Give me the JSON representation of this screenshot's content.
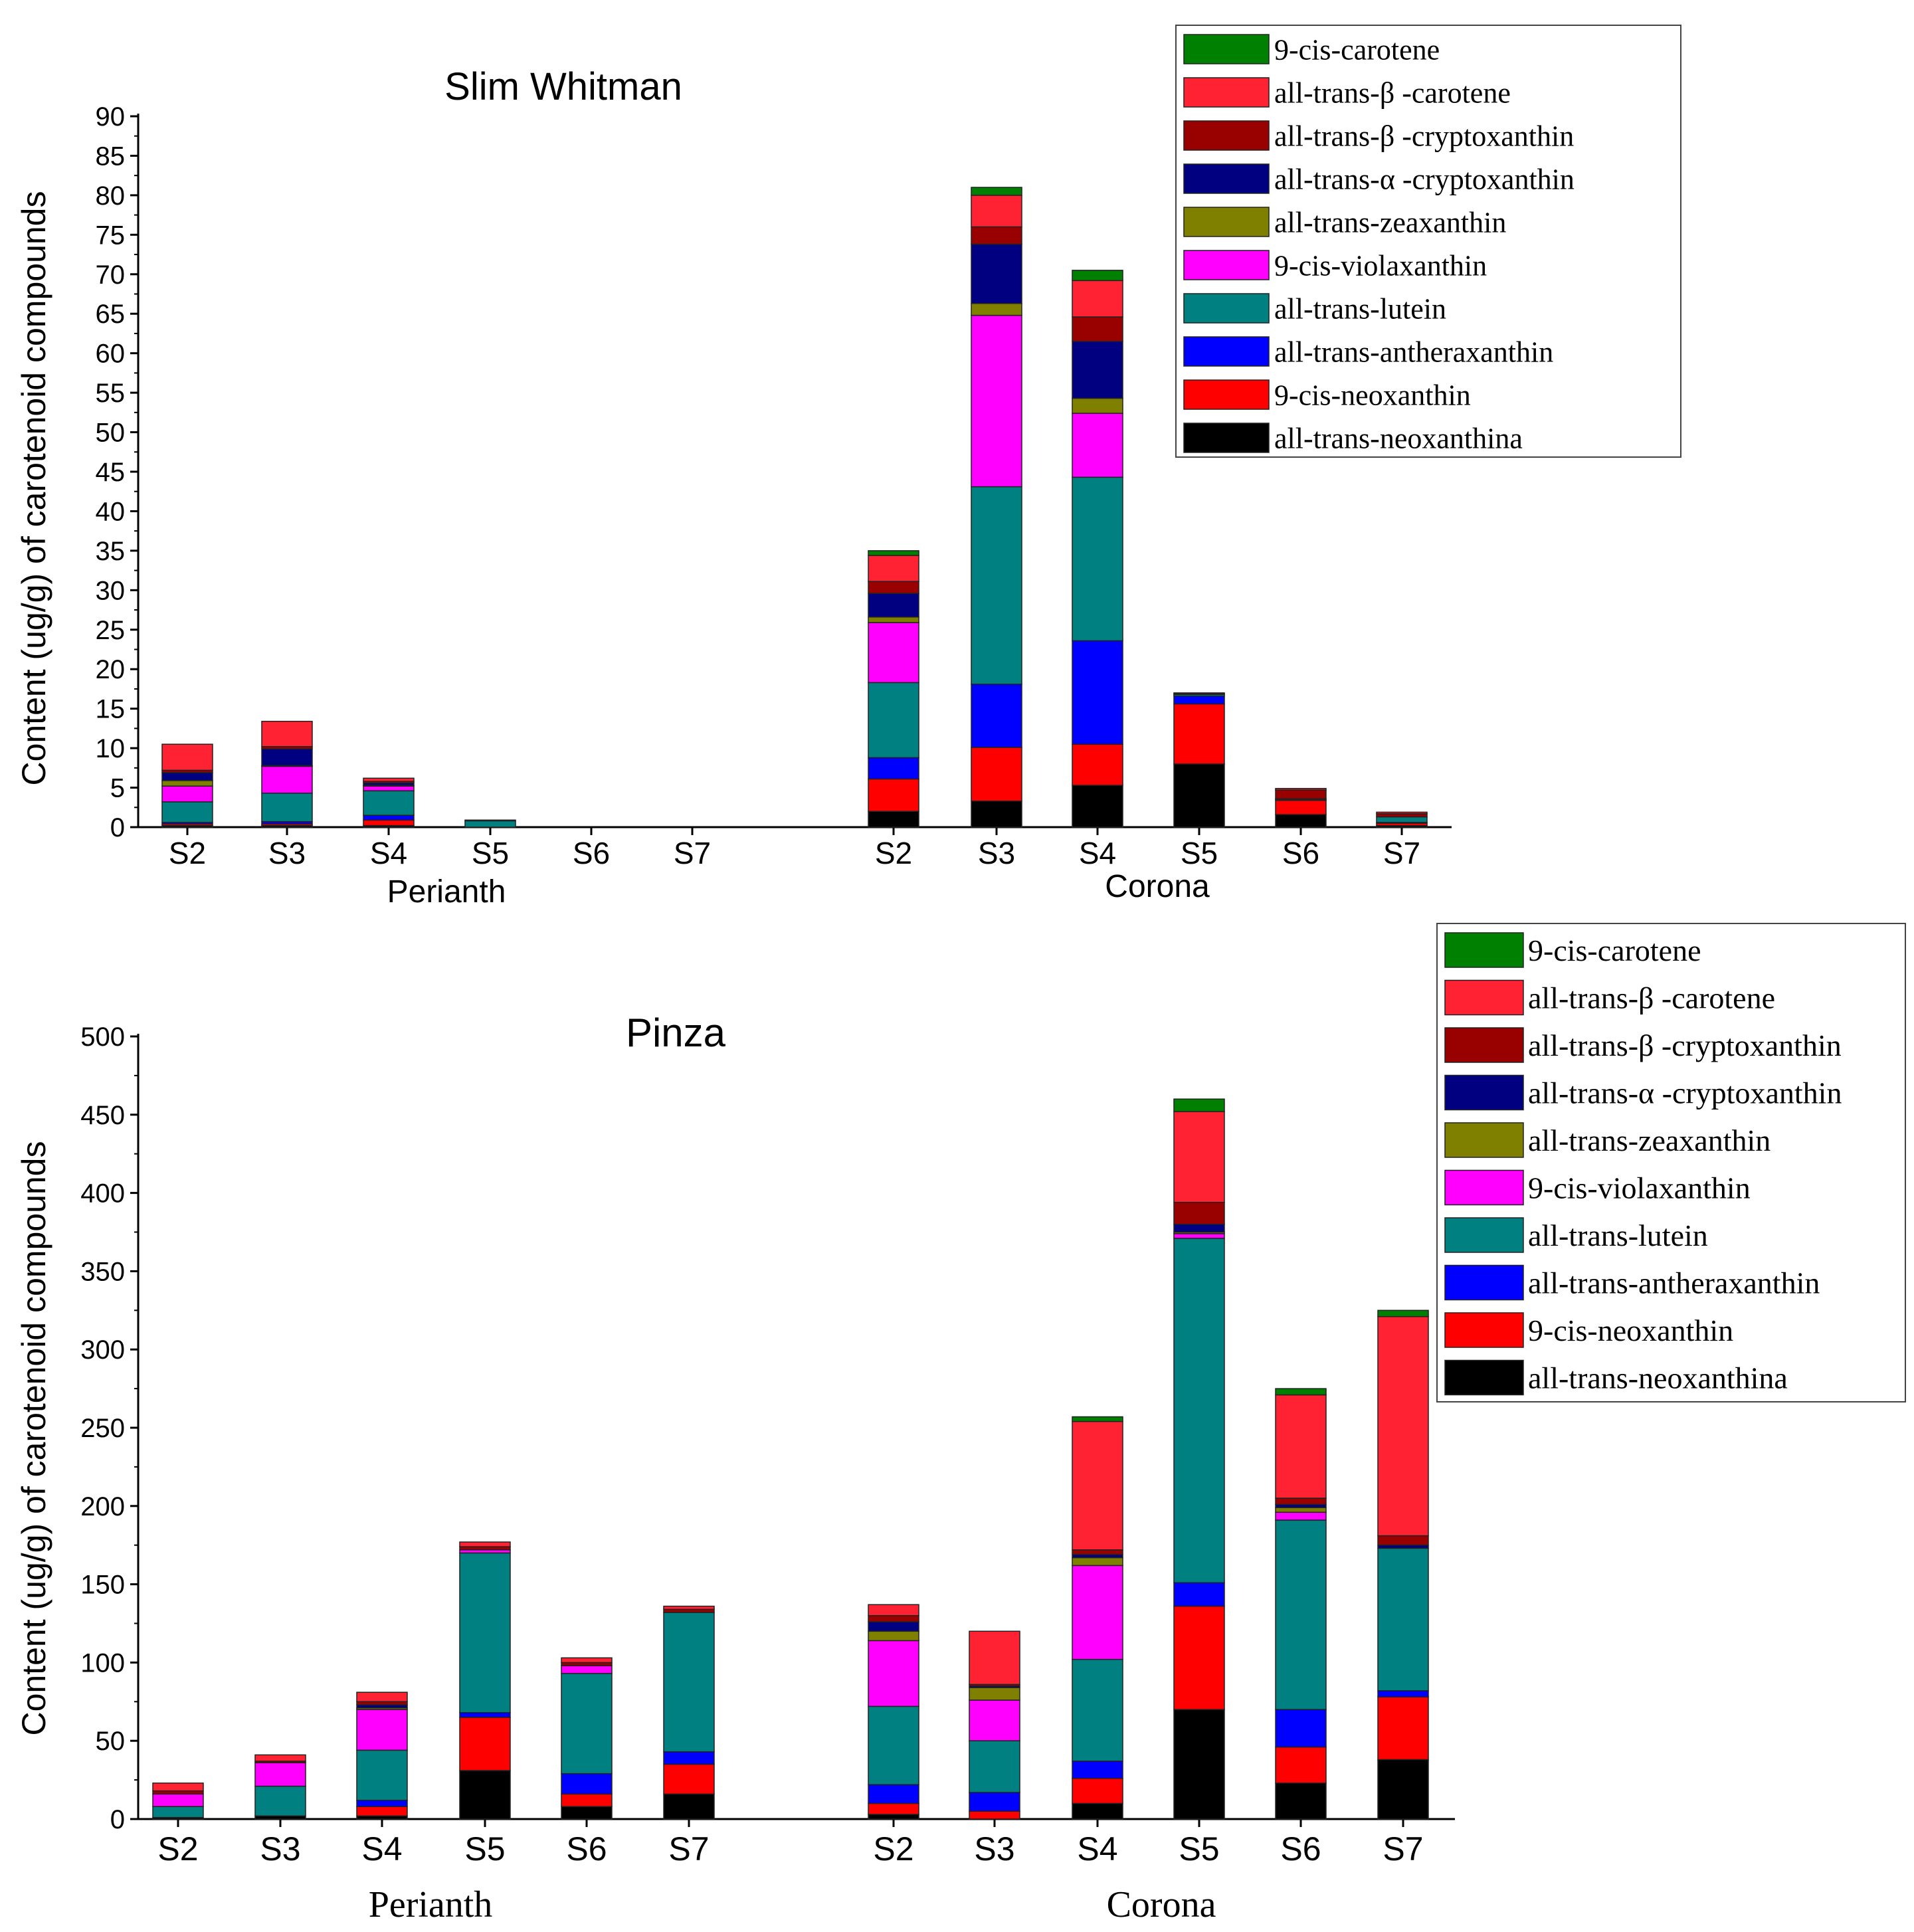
{
  "chart_data": [
    {
      "type": "bar",
      "stacked": true,
      "title": "Slim Whitman",
      "ylabel": "Content (ug/g) of carotenoid compounds",
      "ylim": [
        0,
        90
      ],
      "ytick_step": 5,
      "groups": [
        {
          "label": "Perianth",
          "categories": [
            "S2",
            "S3",
            "S4",
            "S5",
            "S6",
            "S7"
          ]
        },
        {
          "label": "Corona",
          "categories": [
            "S2",
            "S3",
            "S4",
            "S5",
            "S6",
            "S7"
          ]
        }
      ],
      "legend_position": "top-right",
      "series": [
        {
          "name": "all-trans-neoxanthina",
          "color": "#000000",
          "values": [
            0.2,
            0.2,
            0.2,
            0,
            0,
            0,
            2.0,
            3.3,
            5.3,
            8.0,
            1.6,
            0.2
          ]
        },
        {
          "name": "9-cis-neoxanthin",
          "color": "#ff0000",
          "values": [
            0.2,
            0.2,
            0.7,
            0,
            0,
            0,
            4.1,
            6.8,
            5.2,
            7.6,
            1.8,
            0.3
          ]
        },
        {
          "name": "all-trans-antheraxanthin",
          "color": "#0000ff",
          "values": [
            0.2,
            0.3,
            0.6,
            0,
            0,
            0,
            2.7,
            8.0,
            13.1,
            1.0,
            0.1,
            0.1
          ]
        },
        {
          "name": "all-trans-lutein",
          "color": "#008080",
          "values": [
            2.6,
            3.6,
            3.1,
            0.8,
            0,
            0,
            9.5,
            25.0,
            20.7,
            0.2,
            0.1,
            0.7
          ]
        },
        {
          "name": "9-cis-violaxanthin",
          "color": "#ff00ff",
          "values": [
            2.0,
            3.4,
            0.6,
            0,
            0,
            0,
            7.6,
            21.7,
            8.1,
            0,
            0,
            0
          ]
        },
        {
          "name": "all-trans-zeaxanthin",
          "color": "#808000",
          "values": [
            0.7,
            0.1,
            0.1,
            0,
            0,
            0,
            0.7,
            1.5,
            1.9,
            0,
            0,
            0
          ]
        },
        {
          "name": "all-trans-α -cryptoxanthin",
          "color": "#000080",
          "values": [
            1.0,
            2.1,
            0.3,
            0,
            0,
            0,
            3.0,
            7.5,
            7.2,
            0.1,
            0,
            0
          ]
        },
        {
          "name": "all-trans-β -cryptoxanthin",
          "color": "#990000",
          "values": [
            0.3,
            0.3,
            0.2,
            0,
            0,
            0,
            1.5,
            2.2,
            3.1,
            0,
            1.1,
            0.4
          ]
        },
        {
          "name": "all-trans-β -carotene",
          "color": "#ff2233",
          "values": [
            3.3,
            3.2,
            0.4,
            0.1,
            0,
            0,
            3.3,
            4.0,
            4.6,
            0.1,
            0.2,
            0.2
          ]
        },
        {
          "name": "9-cis-carotene",
          "color": "#008000",
          "values": [
            0,
            0,
            0,
            0,
            0,
            0,
            0.6,
            1.0,
            1.3,
            0,
            0,
            0
          ]
        }
      ]
    },
    {
      "type": "bar",
      "stacked": true,
      "title": "Pinza",
      "ylabel": "Content (ug/g) of carotenoid compounds",
      "ylim": [
        0,
        500
      ],
      "ytick_step": 50,
      "groups": [
        {
          "label": "Perianth",
          "categories": [
            "S2",
            "S3",
            "S4",
            "S5",
            "S6",
            "S7"
          ]
        },
        {
          "label": "Corona",
          "categories": [
            "S2",
            "S3",
            "S4",
            "S5",
            "S6",
            "S7"
          ]
        }
      ],
      "legend_position": "top-right",
      "series": [
        {
          "name": "all-trans-neoxanthina",
          "color": "#000000",
          "values": [
            1,
            2,
            2,
            31,
            8,
            16,
            3,
            0,
            10,
            70,
            23,
            38
          ]
        },
        {
          "name": "9-cis-neoxanthin",
          "color": "#ff0000",
          "values": [
            0,
            0,
            6,
            34,
            8,
            19,
            7,
            5,
            16,
            66,
            23,
            40
          ]
        },
        {
          "name": "all-trans-antheraxanthin",
          "color": "#0000ff",
          "values": [
            0,
            0,
            4,
            3,
            13,
            8,
            12,
            12,
            11,
            15,
            24,
            4
          ]
        },
        {
          "name": "all-trans-lutein",
          "color": "#008080",
          "values": [
            7,
            19,
            32,
            102,
            64,
            89,
            50,
            33,
            65,
            220,
            121,
            91
          ]
        },
        {
          "name": "9-cis-violaxanthin",
          "color": "#ff00ff",
          "values": [
            8,
            15,
            26,
            2,
            5,
            0,
            42,
            26,
            60,
            3,
            5,
            0
          ]
        },
        {
          "name": "all-trans-zeaxanthin",
          "color": "#808000",
          "values": [
            0,
            0,
            1,
            0,
            0,
            0,
            6,
            8,
            5,
            1,
            3,
            0
          ]
        },
        {
          "name": "all-trans-α -cryptoxanthin",
          "color": "#000080",
          "values": [
            0,
            0,
            2,
            0,
            0,
            0,
            6,
            1,
            2,
            5,
            2,
            2
          ]
        },
        {
          "name": "all-trans-β -cryptoxanthin",
          "color": "#990000",
          "values": [
            2,
            1,
            2,
            2,
            2,
            2,
            4,
            1,
            3,
            14,
            4,
            6
          ]
        },
        {
          "name": "all-trans-β -carotene",
          "color": "#ff2233",
          "values": [
            5,
            4,
            6,
            3,
            3,
            2,
            7,
            34,
            82,
            58,
            66,
            140
          ]
        },
        {
          "name": "9-cis-carotene",
          "color": "#008000",
          "values": [
            0,
            0,
            0,
            0,
            0,
            0,
            0,
            0,
            3,
            8,
            4,
            4
          ]
        }
      ]
    }
  ]
}
